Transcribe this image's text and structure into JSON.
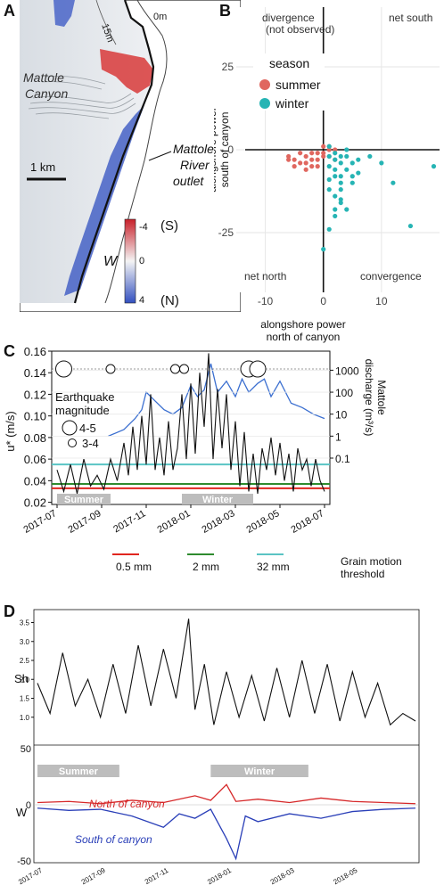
{
  "panels": {
    "a": "A",
    "b": "B",
    "c": "C",
    "d": "D"
  },
  "map": {
    "depth_labels": [
      "15m",
      "0m"
    ],
    "canyon_label": [
      "Mattole",
      "Canyon"
    ],
    "outlet_label": [
      "Mattole",
      "River",
      "outlet"
    ],
    "scale_label": "1 km",
    "colorbar": {
      "symbol": "W",
      "ticks": [
        "-4",
        "0",
        "4"
      ],
      "top_tag": "(S)",
      "bottom_tag": "(N)",
      "colors": {
        "south": "#d62728",
        "neutral": "#f5f5f5",
        "north": "#3b55c4"
      }
    }
  },
  "chart_data": [
    {
      "id": "B",
      "type": "scatter",
      "xlabel": "alongshore power\nnorth of canyon",
      "ylabel": "alongshore power\nsouth of canyon",
      "xlim": [
        -15,
        20
      ],
      "ylim": [
        -43,
        43
      ],
      "xticks": [
        -10,
        0,
        10
      ],
      "yticks": [
        25,
        0,
        -25
      ],
      "grid": true,
      "quadrant_labels": {
        "top_left": "divergence\n(not observed)",
        "top_right": "net south",
        "bottom_left": "net north",
        "bottom_right": "convergence"
      },
      "legend": {
        "title": "season",
        "position": "top-left"
      },
      "series": [
        {
          "name": "summer",
          "color": "#e0675f",
          "points": [
            [
              -6,
              -2
            ],
            [
              -5,
              -3
            ],
            [
              -4,
              -4
            ],
            [
              -3,
              -2
            ],
            [
              -2,
              -5
            ],
            [
              -1,
              -3
            ],
            [
              -3,
              -6
            ],
            [
              -4,
              -1
            ],
            [
              -2,
              -1
            ],
            [
              -1,
              -1
            ],
            [
              0,
              -1
            ],
            [
              1,
              0
            ],
            [
              0,
              -2
            ],
            [
              -1,
              -5
            ],
            [
              -2,
              -3
            ],
            [
              1,
              -2
            ],
            [
              2,
              -3
            ],
            [
              -5,
              -5
            ],
            [
              -6,
              -3
            ],
            [
              0,
              1
            ],
            [
              1,
              1
            ],
            [
              2,
              0
            ],
            [
              -3,
              -4
            ]
          ]
        },
        {
          "name": "winter",
          "color": "#26b4b4",
          "points": [
            [
              1,
              -2
            ],
            [
              2,
              -3
            ],
            [
              3,
              -4
            ],
            [
              4,
              -6
            ],
            [
              2,
              -8
            ],
            [
              3,
              -10
            ],
            [
              1,
              -12
            ],
            [
              2,
              -14
            ],
            [
              3,
              -16
            ],
            [
              4,
              -18
            ],
            [
              2,
              -20
            ],
            [
              1,
              -24
            ],
            [
              0,
              -30
            ],
            [
              3,
              -8
            ],
            [
              5,
              -4
            ],
            [
              6,
              -3
            ],
            [
              8,
              -2
            ],
            [
              10,
              -4
            ],
            [
              12,
              -10
            ],
            [
              15,
              -23
            ],
            [
              19,
              -5
            ],
            [
              4,
              -2
            ],
            [
              2,
              -1
            ],
            [
              1,
              -5
            ],
            [
              3,
              -12
            ],
            [
              5,
              -8
            ],
            [
              2,
              -6
            ],
            [
              1,
              1
            ],
            [
              4,
              0
            ],
            [
              6,
              -7
            ],
            [
              3,
              -15
            ],
            [
              2,
              -18
            ],
            [
              1,
              -9
            ],
            [
              3,
              -2
            ],
            [
              5,
              -10
            ]
          ]
        }
      ]
    },
    {
      "id": "C",
      "type": "line",
      "ylabel": "u* (m/s)",
      "ylim": [
        0.018,
        0.16
      ],
      "yticks": [
        0.02,
        0.04,
        0.06,
        0.08,
        0.1,
        0.12,
        0.14,
        0.16
      ],
      "ytick_labels": [
        "0.02",
        "0.04",
        "0.06",
        "0.08",
        "0.10",
        "0.12",
        "0.14",
        "0.16"
      ],
      "xticks": [
        "2017-07",
        "2017-09",
        "2017-11",
        "2018-01",
        "2018-03",
        "2018-05",
        "2018-07"
      ],
      "y2label": "Mattole discharge (m³/s)",
      "y2ticks": [
        "1000",
        "100",
        "10",
        "1",
        "0.1"
      ],
      "season_bars": [
        {
          "label": "Summer",
          "start_month": 0,
          "end_month": 2.4
        },
        {
          "label": "Winter",
          "start_month": 5.6,
          "end_month": 8.8
        }
      ],
      "thresholds": [
        {
          "name": "0.5 mm",
          "value": 0.033,
          "color": "#e0261f"
        },
        {
          "name": "2 mm",
          "value": 0.037,
          "color": "#2e8b2e"
        },
        {
          "name": "32 mm",
          "value": 0.055,
          "color": "#5ac4c4"
        }
      ],
      "threshold_title": "Grain motion threshold",
      "earthquakes": {
        "title": [
          "Earthquake",
          "magnitude"
        ],
        "legend": [
          "4-5",
          "3-4"
        ],
        "events": [
          {
            "month": 0.3,
            "mag": "4-5"
          },
          {
            "month": 2.4,
            "mag": "3-4"
          },
          {
            "month": 5.3,
            "mag": "3-4"
          },
          {
            "month": 5.7,
            "mag": "3-4"
          },
          {
            "month": 8.6,
            "mag": "4-5"
          },
          {
            "month": 9.0,
            "mag": "4-5"
          }
        ]
      },
      "series": [
        {
          "name": "u*",
          "color": "#111111",
          "months": [
            0,
            0.3,
            0.6,
            0.9,
            1.2,
            1.5,
            1.8,
            2.1,
            2.4,
            2.7,
            3.0,
            3.2,
            3.4,
            3.6,
            3.8,
            4.0,
            4.2,
            4.4,
            4.6,
            4.8,
            5.0,
            5.2,
            5.4,
            5.6,
            5.8,
            6.0,
            6.2,
            6.4,
            6.6,
            6.8,
            7.0,
            7.2,
            7.4,
            7.6,
            7.8,
            8.0,
            8.2,
            8.4,
            8.6,
            8.8,
            9.0,
            9.2,
            9.4,
            9.6,
            9.8,
            10.0,
            10.2,
            10.4,
            10.6,
            10.8,
            11.0,
            11.2,
            11.4,
            11.6,
            11.8,
            12.0
          ],
          "values": [
            0.05,
            0.03,
            0.055,
            0.028,
            0.06,
            0.035,
            0.045,
            0.032,
            0.06,
            0.04,
            0.075,
            0.045,
            0.09,
            0.05,
            0.1,
            0.055,
            0.12,
            0.05,
            0.08,
            0.045,
            0.095,
            0.05,
            0.07,
            0.12,
            0.06,
            0.13,
            0.065,
            0.14,
            0.09,
            0.158,
            0.06,
            0.125,
            0.07,
            0.12,
            0.05,
            0.095,
            0.035,
            0.085,
            0.03,
            0.065,
            0.028,
            0.07,
            0.05,
            0.08,
            0.045,
            0.075,
            0.04,
            0.065,
            0.03,
            0.07,
            0.05,
            0.06,
            0.035,
            0.06,
            0.04,
            0.03
          ]
        },
        {
          "name": "Mattole discharge",
          "color": "#3b6fd0",
          "months": [
            2.3,
            3.0,
            3.5,
            3.8,
            4.0,
            4.4,
            4.8,
            5.2,
            5.6,
            6.0,
            6.3,
            6.6,
            6.9,
            7.2,
            7.6,
            8.0,
            8.3,
            8.6,
            9.0,
            9.3,
            9.6,
            10.0,
            10.5,
            11.0,
            11.5,
            12.0
          ],
          "values_log10": [
            0.0,
            0.3,
            0.8,
            1.2,
            2.0,
            1.6,
            1.2,
            1.0,
            1.3,
            2.3,
            1.8,
            2.1,
            3.3,
            2.0,
            2.5,
            1.8,
            2.6,
            2.0,
            2.4,
            2.6,
            1.8,
            2.5,
            1.5,
            1.3,
            1.0,
            0.8
          ]
        }
      ]
    },
    {
      "id": "D-top",
      "type": "line",
      "ylabel": "Sh",
      "ylim": [
        0.5,
        3.7
      ],
      "yticks": [
        "1.0",
        "1.5",
        "2.0",
        "2.5",
        "3.0",
        "3.5"
      ],
      "series": [
        {
          "name": "Sh",
          "color": "#111111",
          "months": [
            0,
            0.4,
            0.8,
            1.2,
            1.6,
            2.0,
            2.4,
            2.8,
            3.2,
            3.6,
            4.0,
            4.4,
            4.8,
            5.0,
            5.3,
            5.6,
            6.0,
            6.4,
            6.8,
            7.2,
            7.6,
            8.0,
            8.4,
            8.8,
            9.2,
            9.6,
            10.0,
            10.4,
            10.8,
            11.2,
            11.6,
            12.0
          ],
          "values": [
            1.9,
            1.1,
            2.7,
            1.3,
            2.0,
            1.0,
            2.4,
            1.1,
            2.9,
            1.3,
            2.8,
            1.5,
            3.6,
            1.2,
            2.4,
            0.8,
            2.2,
            1.0,
            2.1,
            0.9,
            2.3,
            1.0,
            2.5,
            1.1,
            2.4,
            0.9,
            2.2,
            1.0,
            1.9,
            0.8,
            1.1,
            0.9
          ]
        }
      ]
    },
    {
      "id": "D-bottom",
      "type": "line",
      "ylabel": "W",
      "ylim": [
        -50,
        50
      ],
      "yticks": [
        "50",
        "0",
        "-50"
      ],
      "xticks": [
        "2017-07",
        "2017-09",
        "2017-11",
        "2018-01",
        "2018-03",
        "2018-05"
      ],
      "season_bars": [
        {
          "label": "Summer",
          "start_month": 0,
          "end_month": 2.6
        },
        {
          "label": "Winter",
          "start_month": 5.5,
          "end_month": 8.6
        }
      ],
      "series": [
        {
          "name": "North of canyon",
          "color": "#d62728",
          "months": [
            0,
            1,
            2,
            3,
            4,
            5,
            5.5,
            6,
            6.3,
            7,
            8,
            9,
            10,
            11,
            12
          ],
          "values": [
            2,
            3,
            1,
            4,
            2,
            8,
            4,
            18,
            3,
            5,
            2,
            6,
            3,
            2,
            1
          ]
        },
        {
          "name": "South of canyon",
          "color": "#2a3fb8",
          "months": [
            0,
            1,
            2,
            3,
            4,
            4.5,
            5,
            5.5,
            6,
            6.3,
            6.6,
            7,
            8,
            9,
            10,
            11,
            12
          ],
          "values": [
            -3,
            -5,
            -4,
            -10,
            -20,
            -8,
            -12,
            -4,
            -30,
            -48,
            -10,
            -15,
            -8,
            -12,
            -6,
            -4,
            -3
          ]
        }
      ]
    }
  ]
}
